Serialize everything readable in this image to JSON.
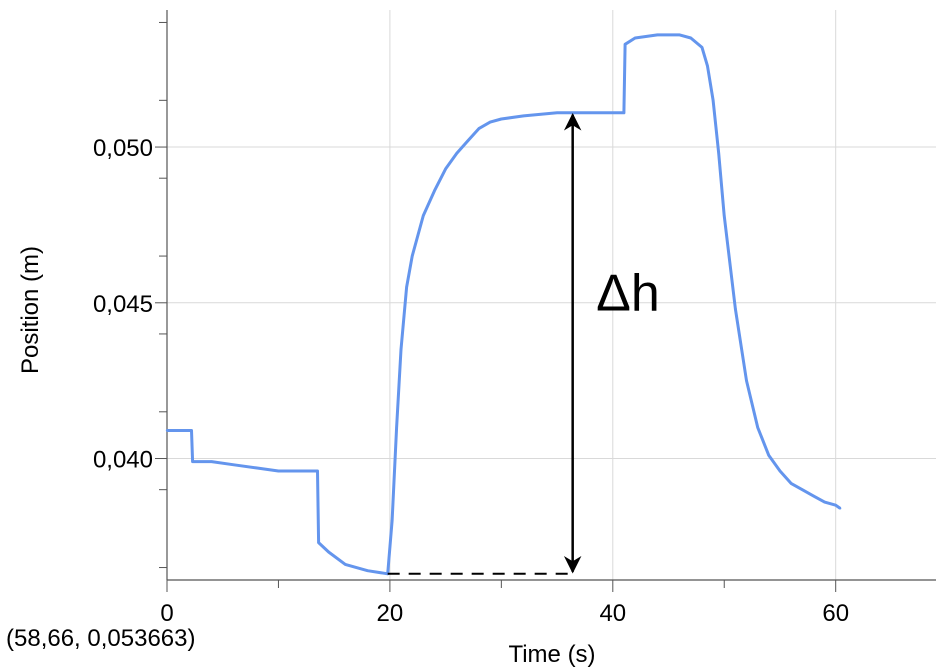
{
  "chart_data": {
    "type": "line",
    "title": "",
    "xlabel": "Time (s)",
    "ylabel": "Position (m)",
    "xlim": [
      0,
      69
    ],
    "ylim": [
      0.0361,
      0.0544
    ],
    "x_ticks": [
      {
        "value": 0,
        "label": "0"
      },
      {
        "value": 20,
        "label": "20"
      },
      {
        "value": 40,
        "label": "40"
      },
      {
        "value": 60,
        "label": "60"
      }
    ],
    "y_ticks": [
      {
        "value": 0.04,
        "label": "0,040"
      },
      {
        "value": 0.045,
        "label": "0,045"
      },
      {
        "value": 0.05,
        "label": "0,050"
      }
    ],
    "grid": true,
    "series": [
      {
        "color": "#6495ed",
        "x": [
          0,
          2.2,
          2.3,
          4,
          6,
          8,
          10,
          12,
          13.5,
          13.6,
          14.5,
          16,
          18,
          19.8,
          20.2,
          20.6,
          21,
          21.5,
          22,
          23,
          24,
          25,
          26,
          27,
          28,
          29,
          30,
          32,
          35,
          38,
          41,
          41.1,
          42,
          44,
          46,
          47,
          48,
          48.5,
          49,
          49.5,
          50,
          51,
          52,
          53,
          54,
          55,
          56,
          57,
          58,
          59,
          60,
          60.4
        ],
        "y": [
          0.0409,
          0.0409,
          0.0399,
          0.0399,
          0.0398,
          0.0397,
          0.0396,
          0.0396,
          0.0396,
          0.0373,
          0.037,
          0.0366,
          0.0364,
          0.0363,
          0.038,
          0.041,
          0.0435,
          0.0455,
          0.0465,
          0.0478,
          0.0486,
          0.0493,
          0.0498,
          0.0502,
          0.0506,
          0.0508,
          0.0509,
          0.051,
          0.0511,
          0.0511,
          0.0511,
          0.0533,
          0.0535,
          0.0536,
          0.0536,
          0.0535,
          0.0532,
          0.0526,
          0.0515,
          0.0498,
          0.0478,
          0.0448,
          0.0425,
          0.041,
          0.0401,
          0.0396,
          0.0392,
          0.039,
          0.0388,
          0.0386,
          0.0385,
          0.0384
        ]
      }
    ],
    "annotations": [
      {
        "text": "Δh",
        "x": 38.5,
        "y": 0.0454
      },
      {
        "type": "double-arrow",
        "x": 36.4,
        "y_from": 0.0363,
        "y_to": 0.0511
      },
      {
        "type": "dashed-line",
        "x_from": 19.8,
        "x_to": 36.4,
        "y": 0.0363
      }
    ]
  },
  "coordinate_readout": "(58,66, 0,053663)"
}
